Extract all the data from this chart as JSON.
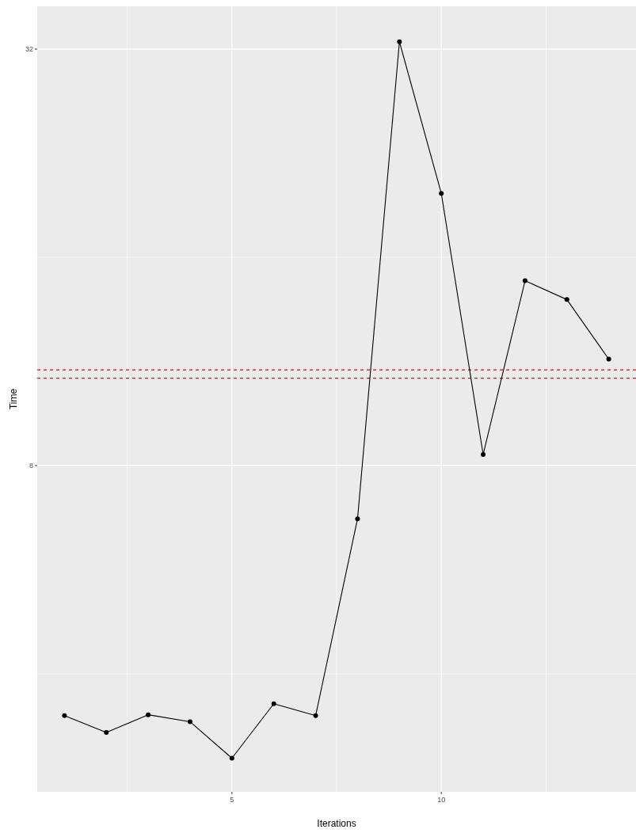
{
  "chart_data": {
    "type": "line",
    "xlabel": "Iterations",
    "ylabel": "Time",
    "x": [
      1,
      2,
      3,
      4,
      5,
      6,
      7,
      8,
      9,
      10,
      11,
      12,
      13,
      14
    ],
    "series": [
      {
        "color": "#000000",
        "values": [
          3.48,
          3.29,
          3.49,
          3.41,
          3.02,
          3.62,
          3.48,
          6.7,
          32.8,
          19.8,
          8.3,
          14.8,
          13.9,
          11.4
        ]
      }
    ],
    "xlim": [
      0.35,
      14.65
    ],
    "xticks": [
      5,
      10
    ],
    "ylim": [
      2.7,
      36.9
    ],
    "yticks": [
      8,
      32
    ],
    "log": "y",
    "grid": true,
    "marker": "circle",
    "line_style": "solid",
    "ref_lines": [
      {
        "axis": "y",
        "value": 11.0,
        "color": "#ff0000",
        "line_style": "dashed"
      },
      {
        "axis": "y",
        "value": 10.7,
        "color": "#ff0000",
        "line_style": "dashed"
      }
    ]
  }
}
